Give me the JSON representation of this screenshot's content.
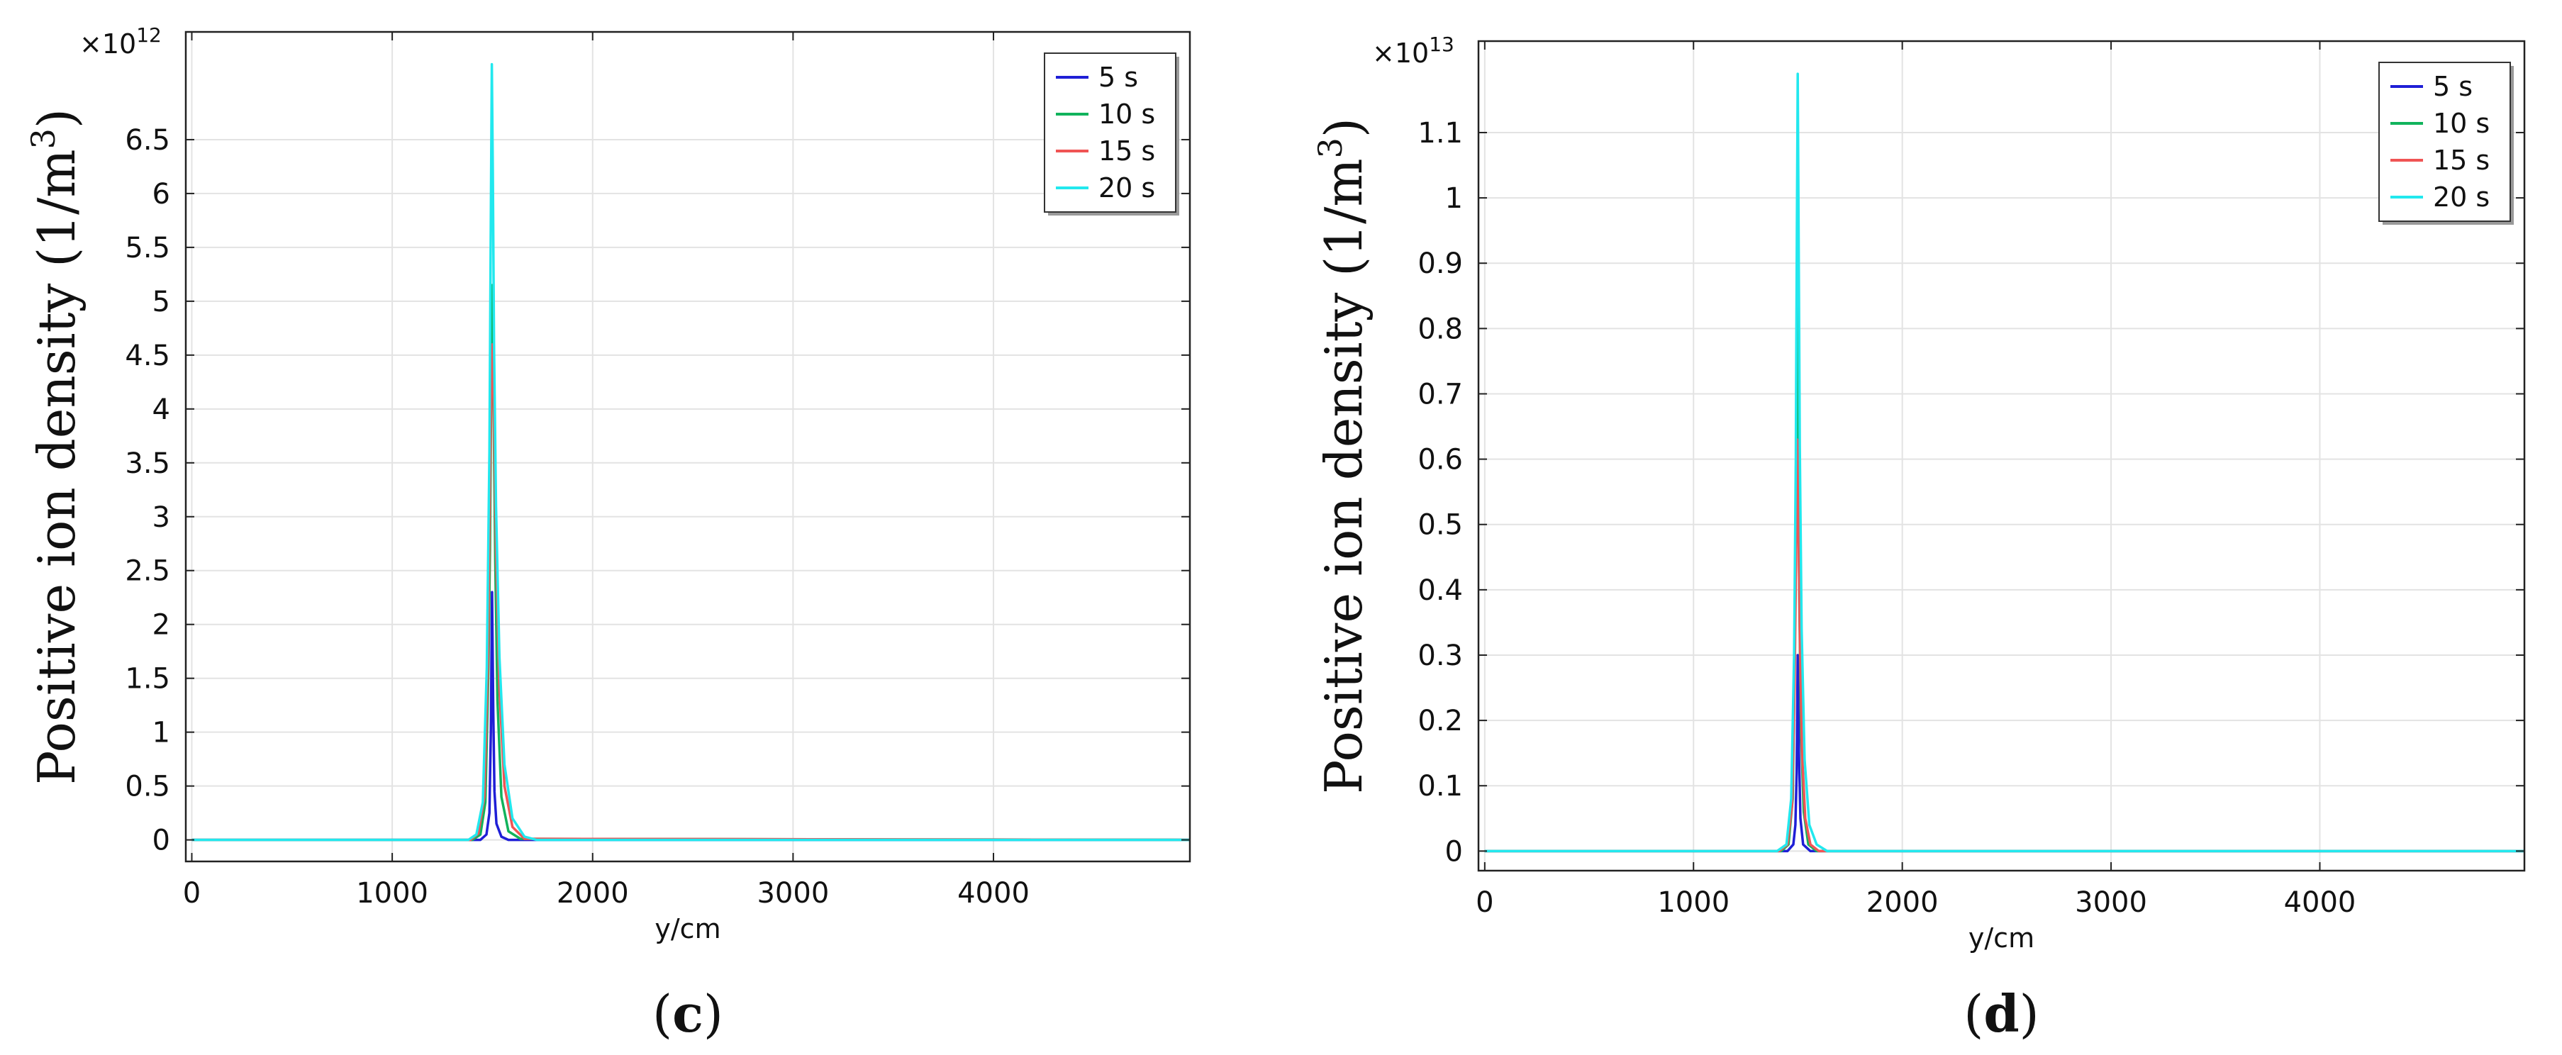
{
  "chart_data": [
    {
      "type": "line",
      "panel_label_pre": "(",
      "panel_label": "c",
      "panel_label_post": ")",
      "xlabel": "y/cm",
      "ylabel": "Positive ion density (1/m",
      "ylabel_sup": "3",
      "ylabel_end": ")",
      "y_multiplier_base": "×10",
      "y_multiplier_exp": "12",
      "xlim": [
        -30,
        4980
      ],
      "ylim": [
        -0.2,
        7.5
      ],
      "x_ticks": [
        0,
        1000,
        2000,
        3000,
        4000
      ],
      "x_tick_labels": [
        "0",
        "1000",
        "2000",
        "3000",
        "4000"
      ],
      "y_ticks": [
        0,
        0.5,
        1,
        1.5,
        2,
        2.5,
        3,
        3.5,
        4,
        4.5,
        5,
        5.5,
        6,
        6.5
      ],
      "y_tick_labels": [
        "0",
        "0.5",
        "1",
        "1.5",
        "2",
        "2.5",
        "3",
        "3.5",
        "4",
        "4.5",
        "5",
        "5.5",
        "6",
        "6.5"
      ],
      "grid": true,
      "legend_position": "top-right",
      "series": [
        {
          "name": "5 s",
          "color": "#1f1fd6",
          "x": [
            0,
            1440,
            1470,
            1485,
            1492,
            1498,
            1504,
            1510,
            1520,
            1545,
            1580,
            4980
          ],
          "y": [
            0,
            0,
            0.05,
            0.25,
            1.0,
            2.3,
            1.2,
            0.45,
            0.15,
            0.03,
            0,
            0
          ]
        },
        {
          "name": "10 s",
          "color": "#11b35c",
          "x": [
            0,
            1400,
            1440,
            1465,
            1480,
            1488,
            1494,
            1500,
            1506,
            1514,
            1525,
            1545,
            1580,
            1640,
            4980
          ],
          "y": [
            0,
            0,
            0.05,
            0.35,
            1.6,
            2.7,
            4.2,
            5.15,
            4.0,
            2.6,
            1.3,
            0.4,
            0.08,
            0.01,
            0
          ]
        },
        {
          "name": "15 s",
          "color": "#f05454",
          "x": [
            0,
            1390,
            1430,
            1460,
            1478,
            1488,
            1495,
            1501,
            1508,
            1518,
            1535,
            1560,
            1600,
            1660,
            4980
          ],
          "y": [
            0,
            0,
            0.06,
            0.4,
            1.7,
            3.3,
            4.4,
            4.6,
            3.9,
            2.7,
            1.4,
            0.5,
            0.12,
            0.01,
            0
          ]
        },
        {
          "name": "20 s",
          "color": "#22e8ee",
          "x": [
            0,
            1380,
            1420,
            1452,
            1472,
            1485,
            1492,
            1497,
            1502,
            1508,
            1518,
            1535,
            1560,
            1600,
            1660,
            1720,
            4980
          ],
          "y": [
            0,
            0,
            0.05,
            0.35,
            1.6,
            3.6,
            5.8,
            7.2,
            6.2,
            4.6,
            3.1,
            1.7,
            0.7,
            0.2,
            0.03,
            0,
            0
          ]
        }
      ]
    },
    {
      "type": "line",
      "panel_label_pre": "(",
      "panel_label": "d",
      "panel_label_post": ")",
      "xlabel": "y/cm",
      "ylabel": "Positive ion density (1/m",
      "ylabel_sup": "3",
      "ylabel_end": ")",
      "y_multiplier_base": "×10",
      "y_multiplier_exp": "13",
      "xlim": [
        -30,
        4980
      ],
      "ylim": [
        -0.03,
        1.24
      ],
      "x_ticks": [
        0,
        1000,
        2000,
        3000,
        4000
      ],
      "x_tick_labels": [
        "0",
        "1000",
        "2000",
        "3000",
        "4000"
      ],
      "y_ticks": [
        0,
        0.1,
        0.2,
        0.3,
        0.4,
        0.5,
        0.6,
        0.7,
        0.8,
        0.9,
        1,
        1.1
      ],
      "y_tick_labels": [
        "0",
        "0.1",
        "0.2",
        "0.3",
        "0.4",
        "0.5",
        "0.6",
        "0.7",
        "0.8",
        "0.9",
        "1",
        "1.1"
      ],
      "grid": true,
      "legend_position": "top-right",
      "series": [
        {
          "name": "5 s",
          "color": "#1f1fd6",
          "x": [
            0,
            1450,
            1478,
            1488,
            1494,
            1499,
            1505,
            1512,
            1525,
            1560,
            4980
          ],
          "y": [
            0,
            0,
            0.01,
            0.04,
            0.12,
            0.3,
            0.15,
            0.05,
            0.01,
            0,
            0
          ]
        },
        {
          "name": "10 s",
          "color": "#11b35c",
          "x": [
            0,
            1420,
            1455,
            1475,
            1485,
            1491,
            1496,
            1501,
            1507,
            1515,
            1528,
            1550,
            1590,
            4980
          ],
          "y": [
            0,
            0,
            0.01,
            0.08,
            0.3,
            0.6,
            0.85,
            0.62,
            0.38,
            0.18,
            0.06,
            0.01,
            0,
            0
          ]
        },
        {
          "name": "15 s",
          "color": "#f05454",
          "x": [
            0,
            1410,
            1450,
            1472,
            1484,
            1491,
            1497,
            1503,
            1510,
            1520,
            1535,
            1560,
            1600,
            4980
          ],
          "y": [
            0,
            0,
            0.01,
            0.07,
            0.25,
            0.44,
            0.63,
            0.5,
            0.32,
            0.15,
            0.05,
            0.01,
            0,
            0
          ]
        },
        {
          "name": "20 s",
          "color": "#22e8ee",
          "x": [
            0,
            1400,
            1445,
            1468,
            1482,
            1490,
            1495,
            1499,
            1503,
            1509,
            1518,
            1532,
            1555,
            1590,
            1640,
            4980
          ],
          "y": [
            0,
            0,
            0.01,
            0.08,
            0.3,
            0.6,
            0.95,
            1.19,
            0.98,
            0.62,
            0.34,
            0.14,
            0.04,
            0.01,
            0,
            0
          ]
        }
      ]
    }
  ]
}
